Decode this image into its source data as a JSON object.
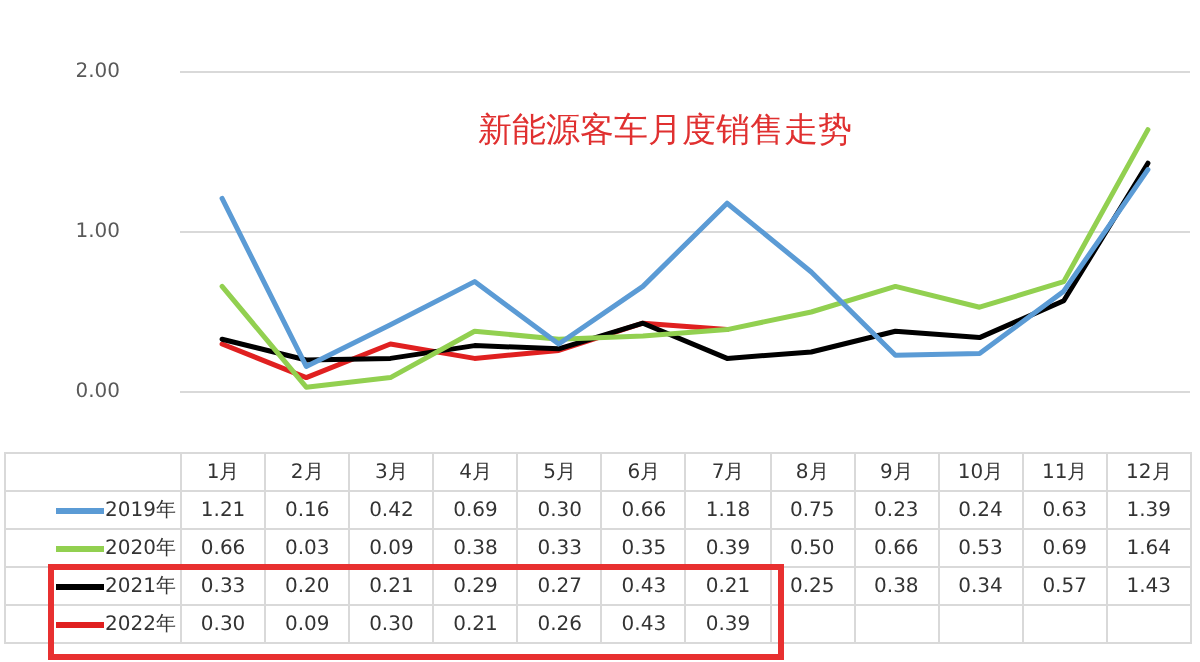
{
  "chart_data": {
    "type": "line",
    "title": "新能源客车月度销售走势",
    "categories": [
      "1月",
      "2月",
      "3月",
      "4月",
      "5月",
      "6月",
      "7月",
      "8月",
      "9月",
      "10月",
      "11月",
      "12月"
    ],
    "series": [
      {
        "name": "2019年",
        "color": "#5b9bd5",
        "values": [
          1.21,
          0.16,
          0.42,
          0.69,
          0.3,
          0.66,
          1.18,
          0.75,
          0.23,
          0.24,
          0.63,
          1.39
        ],
        "value_labels": [
          "1.21",
          "0.16",
          "0.42",
          "0.69",
          "0.30",
          "0.66",
          "1.18",
          "0.75",
          "0.23",
          "0.24",
          "0.63",
          "1.39"
        ]
      },
      {
        "name": "2020年",
        "color": "#92d050",
        "values": [
          0.66,
          0.03,
          0.09,
          0.38,
          0.33,
          0.35,
          0.39,
          0.5,
          0.66,
          0.53,
          0.69,
          1.64
        ],
        "value_labels": [
          "0.66",
          "0.03",
          "0.09",
          "0.38",
          "0.33",
          "0.35",
          "0.39",
          "0.50",
          "0.66",
          "0.53",
          "0.69",
          "1.64"
        ]
      },
      {
        "name": "2021年",
        "color": "#000000",
        "values": [
          0.33,
          0.2,
          0.21,
          0.29,
          0.27,
          0.43,
          0.21,
          0.25,
          0.38,
          0.34,
          0.57,
          1.43
        ],
        "value_labels": [
          "0.33",
          "0.20",
          "0.21",
          "0.29",
          "0.27",
          "0.43",
          "0.21",
          "0.25",
          "0.38",
          "0.34",
          "0.57",
          "1.43"
        ]
      },
      {
        "name": "2022年",
        "color": "#e02020",
        "values": [
          0.3,
          0.09,
          0.3,
          0.21,
          0.26,
          0.43,
          0.39,
          null,
          null,
          null,
          null,
          null
        ],
        "value_labels": [
          "0.30",
          "0.09",
          "0.30",
          "0.21",
          "0.26",
          "0.43",
          "0.39",
          null,
          null,
          null,
          null,
          null
        ]
      }
    ],
    "ylim": [
      0,
      2
    ],
    "yticks": [
      {
        "value": 0,
        "label": "0.00"
      },
      {
        "value": 1,
        "label": "1.00"
      },
      {
        "value": 2,
        "label": "2.00"
      }
    ],
    "grid": "y",
    "legend": "bottom",
    "marker": "none",
    "line_style": "solid"
  }
}
